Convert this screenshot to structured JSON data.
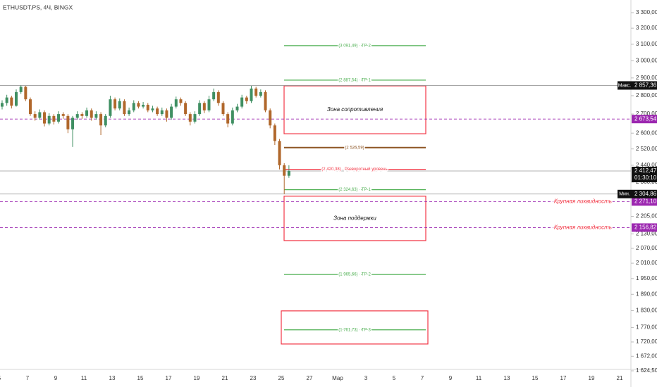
{
  "header": {
    "title": "ETHUSDT.PS, 4Ч, BINGX"
  },
  "chart_data": {
    "type": "candlestick",
    "log_scale": true,
    "ylim": [
      1624.5,
      3300
    ],
    "yticks": [
      {
        "value": 3300,
        "label": "3 300,00"
      },
      {
        "value": 3200,
        "label": "3 200,00"
      },
      {
        "value": 3100,
        "label": "3 100,00"
      },
      {
        "value": 3000,
        "label": "3 000,00"
      },
      {
        "value": 2900,
        "label": "2 900,00"
      },
      {
        "value": 2800,
        "label": "2 800,00"
      },
      {
        "value": 2700,
        "label": "2 700,00"
      },
      {
        "value": 2600,
        "label": "2 600,00"
      },
      {
        "value": 2520,
        "label": "2 520,00"
      },
      {
        "value": 2440,
        "label": "2 440,00"
      },
      {
        "value": 2360,
        "label": "2 360,00"
      },
      {
        "value": 2205,
        "label": "2 205,00"
      },
      {
        "value": 2130,
        "label": "2 130,00"
      },
      {
        "value": 2070,
        "label": "2 070,00"
      },
      {
        "value": 2010,
        "label": "2 010,00"
      },
      {
        "value": 1950,
        "label": "1 950,00"
      },
      {
        "value": 1890,
        "label": "1 890,00"
      },
      {
        "value": 1830,
        "label": "1 830,00"
      },
      {
        "value": 1770,
        "label": "1 770,00"
      },
      {
        "value": 1720,
        "label": "1 720,00"
      },
      {
        "value": 1672,
        "label": "1 672,00"
      },
      {
        "value": 1624.5,
        "label": "1 624,50"
      }
    ],
    "categories": [
      "5",
      "7",
      "9",
      "11",
      "13",
      "15",
      "17",
      "19",
      "21",
      "23",
      "25",
      "27",
      "Мар",
      "3",
      "5",
      "7",
      "9",
      "11",
      "13",
      "15",
      "17",
      "19",
      "21"
    ],
    "up_color": "#3f8f62",
    "down_color": "#b0672b",
    "open": [
      2740,
      2760,
      2790,
      2745,
      2820,
      2850,
      2780,
      2700,
      2680,
      2710,
      2650,
      2690,
      2660,
      2700,
      2690,
      2620,
      2680,
      2700,
      2690,
      2720,
      2680,
      2700,
      2640,
      2690,
      2780,
      2730,
      2770,
      2700,
      2720,
      2760,
      2740,
      2750,
      2720,
      2730,
      2700,
      2720,
      2680,
      2740,
      2780,
      2760,
      2700,
      2660,
      2700,
      2760,
      2720,
      2780,
      2820,
      2760,
      2700,
      2650,
      2720,
      2740,
      2790,
      2770,
      2840,
      2800,
      2820,
      2720,
      2640,
      2560,
      2440,
      2390
    ],
    "high": [
      2775,
      2805,
      2800,
      2835,
      2857.36,
      2855,
      2790,
      2715,
      2725,
      2720,
      2705,
      2700,
      2715,
      2710,
      2700,
      2690,
      2715,
      2710,
      2735,
      2730,
      2715,
      2710,
      2700,
      2800,
      2790,
      2785,
      2780,
      2735,
      2775,
      2770,
      2765,
      2760,
      2745,
      2740,
      2735,
      2730,
      2755,
      2795,
      2790,
      2770,
      2710,
      2715,
      2775,
      2770,
      2800,
      2840,
      2830,
      2770,
      2710,
      2735,
      2755,
      2805,
      2800,
      2855,
      2850,
      2835,
      2830,
      2730,
      2650,
      2570,
      2450,
      2440
    ],
    "low": [
      2725,
      2745,
      2730,
      2740,
      2810,
      2770,
      2690,
      2665,
      2670,
      2635,
      2640,
      2645,
      2650,
      2675,
      2600,
      2530,
      2670,
      2675,
      2680,
      2665,
      2670,
      2590,
      2630,
      2680,
      2720,
      2720,
      2690,
      2690,
      2710,
      2730,
      2730,
      2710,
      2710,
      2690,
      2690,
      2660,
      2670,
      2730,
      2745,
      2690,
      2640,
      2650,
      2690,
      2705,
      2710,
      2770,
      2745,
      2690,
      2630,
      2640,
      2710,
      2730,
      2755,
      2760,
      2790,
      2790,
      2710,
      2625,
      2540,
      2420,
      2304.86,
      2380
    ],
    "close": [
      2760,
      2790,
      2745,
      2820,
      2850,
      2780,
      2700,
      2680,
      2710,
      2650,
      2690,
      2660,
      2700,
      2690,
      2620,
      2680,
      2700,
      2690,
      2720,
      2680,
      2700,
      2640,
      2690,
      2780,
      2730,
      2770,
      2700,
      2720,
      2760,
      2740,
      2750,
      2720,
      2730,
      2700,
      2720,
      2680,
      2740,
      2780,
      2760,
      2700,
      2660,
      2700,
      2760,
      2720,
      2780,
      2820,
      2760,
      2700,
      2650,
      2720,
      2740,
      2790,
      2770,
      2840,
      2800,
      2820,
      2720,
      2640,
      2560,
      2440,
      2390,
      2412.47
    ],
    "levels": [
      {
        "value": 3091.49,
        "label": "(3 091,49) · TP-2",
        "color": "#4caf50"
      },
      {
        "value": 2887.54,
        "label": "(2 887,54) · TP-1",
        "color": "#4caf50"
      },
      {
        "value": 2526.59,
        "label": "(2 526,59)",
        "color": "#8d5524"
      },
      {
        "value": 2420.38,
        "label": "(2 420,38) · Разворотный уровень",
        "color": "#f23645"
      },
      {
        "value": 2324.63,
        "label": "(2 324,63) · TP-1",
        "color": "#4caf50"
      },
      {
        "value": 1965.66,
        "label": "(1 965,66) · TP-2",
        "color": "#4caf50"
      },
      {
        "value": 1761.73,
        "label": "(1 761,73) · TP-3",
        "color": "#4caf50"
      }
    ],
    "zones": [
      {
        "top": 2855,
        "bottom": 2597,
        "label": "Зона сопротивления"
      },
      {
        "top": 2295,
        "bottom": 2102,
        "label": "Зона поддержки"
      },
      {
        "top": 1829,
        "bottom": 1713
      }
    ],
    "price_lines": [
      {
        "value": 2857.36,
        "tag": "Макс.",
        "label": "2 857,36"
      },
      {
        "value": 2304.86,
        "tag": "Мин.",
        "label": "2 304,86"
      },
      {
        "value": 2412.47,
        "label": "2 412,47",
        "timer": "01:30:10"
      }
    ],
    "liquidity": [
      {
        "value": 2673.54,
        "label": "2 673,54"
      },
      {
        "value": 2271.1,
        "note": "Крупная ликвидность",
        "label": "2 271,10"
      },
      {
        "value": 2156.82,
        "note": "Крупная ликвидность",
        "label": "2 156,82"
      }
    ]
  }
}
